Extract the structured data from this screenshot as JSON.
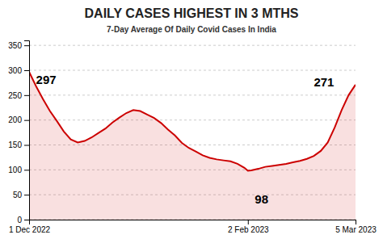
{
  "chart_data": {
    "type": "area",
    "title": "DAILY CASES HIGHEST IN 3 MTHS",
    "subtitle": "7-Day Average Of Daily Covid Cases In India",
    "x": [
      0,
      2,
      4,
      6,
      8,
      10,
      12,
      14,
      16,
      18,
      20,
      22,
      24,
      26,
      28,
      30,
      32,
      34,
      36,
      38,
      40,
      42,
      44,
      46,
      48,
      50,
      52,
      54,
      56,
      58,
      60,
      62,
      63,
      64,
      66,
      68,
      70,
      72,
      74,
      76,
      78,
      80,
      82,
      84,
      86,
      88,
      90,
      92,
      94
    ],
    "values": [
      297,
      268,
      242,
      218,
      198,
      177,
      161,
      155,
      158,
      165,
      174,
      183,
      195,
      205,
      214,
      220,
      218,
      211,
      204,
      194,
      181,
      169,
      154,
      144,
      137,
      129,
      124,
      121,
      119,
      117,
      112,
      104,
      98,
      99,
      102,
      106,
      108,
      110,
      112,
      115,
      118,
      122,
      128,
      138,
      155,
      185,
      220,
      250,
      271
    ],
    "color": "#cc0000",
    "xlim": [
      0,
      94
    ],
    "xticks": [
      {
        "value": 0,
        "label": "1 Dec 2022"
      },
      {
        "value": 63,
        "label": "2 Feb 2023"
      },
      {
        "value": 94,
        "label": "5 Mar 2023"
      }
    ],
    "ylim": [
      0,
      360
    ],
    "yticks": [
      0,
      50,
      100,
      150,
      200,
      250,
      300,
      350
    ],
    "grid": true,
    "annotations": [
      {
        "text": "297",
        "x": 2,
        "y": 291
      },
      {
        "text": "98",
        "x": 65,
        "y": 50
      },
      {
        "text": "271",
        "x": 82,
        "y": 285
      }
    ]
  }
}
